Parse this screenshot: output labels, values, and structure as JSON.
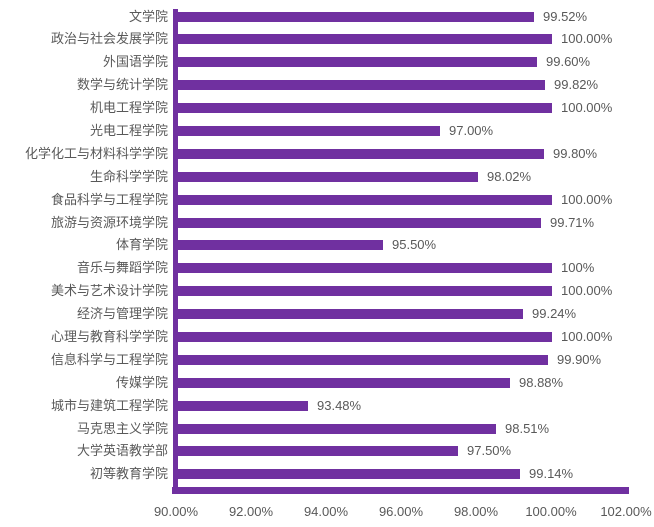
{
  "chart_data": {
    "type": "bar",
    "orientation": "horizontal",
    "title": "",
    "xlabel": "",
    "ylabel": "",
    "grid": false,
    "legend": "none",
    "xlim": [
      90,
      102
    ],
    "categories": [
      "文学院",
      "政治与社会发展学院",
      "外国语学院",
      "数学与统计学院",
      "机电工程学院",
      "光电工程学院",
      "化学化工与材料科学学院",
      "生命科学学院",
      "食品科学与工程学院",
      "旅游与资源环境学院",
      "体育学院",
      "音乐与舞蹈学院",
      "美术与艺术设计学院",
      "经济与管理学院",
      "心理与教育科学学院",
      "信息科学与工程学院",
      "传媒学院",
      "城市与建筑工程学院",
      "马克思主义学院",
      "大学英语教学部",
      "初等教育学院"
    ],
    "values": [
      99.52,
      100.0,
      99.6,
      99.82,
      100.0,
      97.0,
      99.8,
      98.02,
      100.0,
      99.71,
      95.5,
      100,
      100.0,
      99.24,
      100.0,
      99.9,
      98.88,
      93.48,
      98.51,
      97.5,
      99.14
    ],
    "value_labels": [
      "99.52%",
      "100.00%",
      "99.60%",
      "99.82%",
      "100.00%",
      "97.00%",
      "99.80%",
      "98.02%",
      "100.00%",
      "99.71%",
      "95.50%",
      "100%",
      "100.00%",
      "99.24%",
      "100.00%",
      "99.90%",
      "98.88%",
      "93.48%",
      "98.51%",
      "97.50%",
      "99.14%"
    ],
    "x_tick_values": [
      90,
      92,
      94,
      96,
      98,
      100,
      102
    ],
    "x_tick_labels": [
      "90.00%",
      "92.00%",
      "94.00%",
      "96.00%",
      "98.00%",
      "100.00%",
      "102.00%"
    ],
    "colors": {
      "bar": "#7030A0",
      "axis": "#7030A0",
      "text": "#595959"
    }
  }
}
